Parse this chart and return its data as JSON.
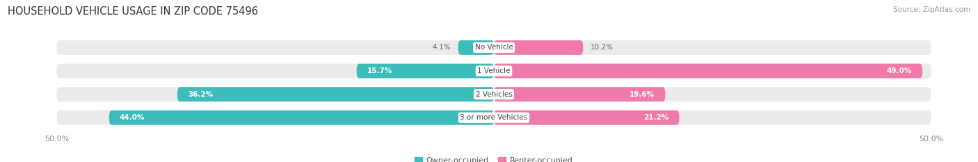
{
  "title": "HOUSEHOLD VEHICLE USAGE IN ZIP CODE 75496",
  "source": "Source: ZipAtlas.com",
  "categories": [
    "No Vehicle",
    "1 Vehicle",
    "2 Vehicles",
    "3 or more Vehicles"
  ],
  "owner_values": [
    4.1,
    15.7,
    36.2,
    44.0
  ],
  "renter_values": [
    10.2,
    49.0,
    19.6,
    21.2
  ],
  "owner_color": "#3DBCBC",
  "renter_color": "#F07AAA",
  "bar_bg_color": "#EBEBEB",
  "axis_limit": 50.0,
  "title_fontsize": 10.5,
  "source_fontsize": 7.5,
  "tick_fontsize": 8,
  "label_fontsize": 7.5,
  "category_fontsize": 7.5,
  "legend_fontsize": 8,
  "bar_height": 0.62,
  "background_color": "#FFFFFF",
  "owner_label_inside_threshold": 10,
  "renter_label_inside_threshold": 15
}
